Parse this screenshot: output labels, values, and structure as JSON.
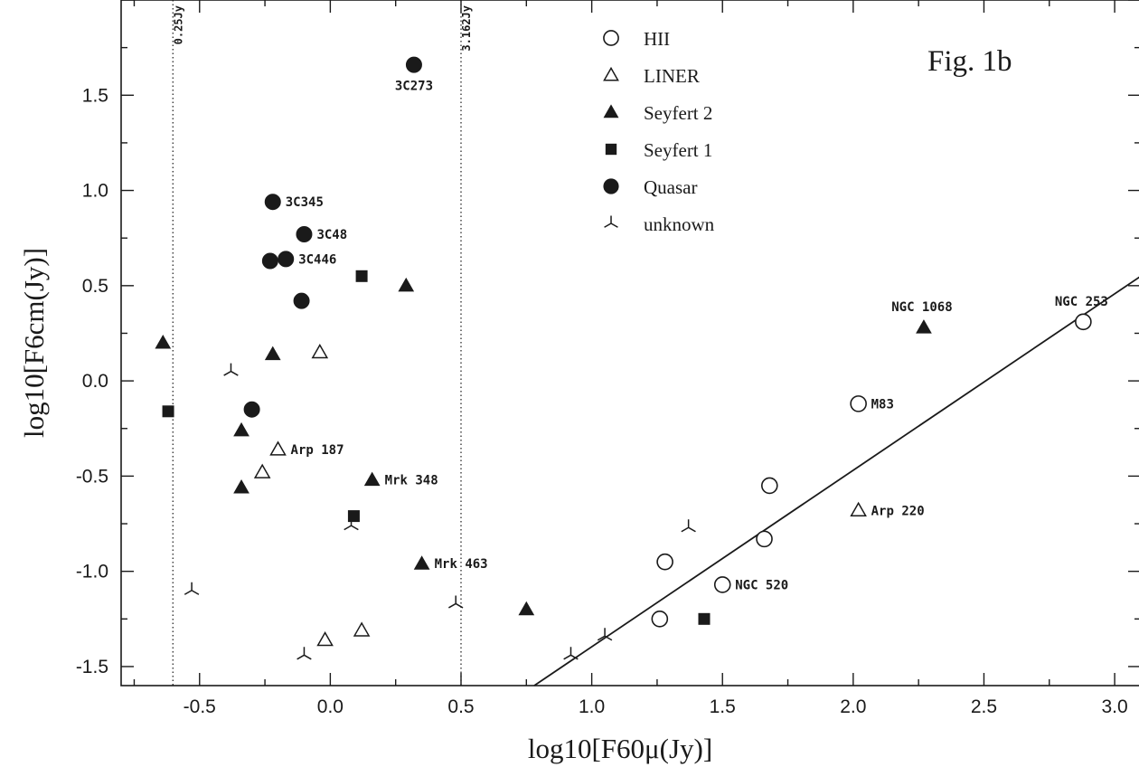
{
  "chart_data": {
    "type": "scatter",
    "title": "Fig. 1b",
    "xlabel": "log10[F60μ(Jy)]",
    "ylabel": "log10[F6cm(Jy)]",
    "xlim": [
      -0.8,
      3.1
    ],
    "ylim": [
      -1.6,
      2.0
    ],
    "x_ticks": [
      -0.5,
      0.0,
      0.5,
      1.0,
      1.5,
      2.0,
      2.5,
      3.0
    ],
    "x_tick_labels": [
      "-0.5",
      "0.0",
      "0.5",
      "1.0",
      "1.5",
      "2.0",
      "2.5",
      "3.0"
    ],
    "y_ticks": [
      -1.5,
      -1.0,
      -0.5,
      0.0,
      0.5,
      1.0,
      1.5
    ],
    "y_tick_labels": [
      "-1.5",
      "-1.0",
      "-0.5",
      "0.0",
      "0.5",
      "1.0",
      "1.5"
    ],
    "grid": false,
    "legend_position": "top-center",
    "vertical_lines": [
      {
        "x": -0.602,
        "label": "0.25Jy"
      },
      {
        "x": 0.5,
        "label": "3.162Jy"
      }
    ],
    "fit_line": {
      "x": [
        0.78,
        3.1
      ],
      "y": [
        -1.6,
        0.55
      ]
    },
    "series": [
      {
        "name": "HII",
        "marker": "circle-open",
        "points": [
          {
            "x": 1.26,
            "y": -1.25,
            "label": ""
          },
          {
            "x": 1.28,
            "y": -0.95,
            "label": ""
          },
          {
            "x": 1.5,
            "y": -1.07,
            "label": "NGC 520"
          },
          {
            "x": 1.66,
            "y": -0.83,
            "label": ""
          },
          {
            "x": 1.68,
            "y": -0.55,
            "label": ""
          },
          {
            "x": 2.02,
            "y": -0.12,
            "label": "M83"
          },
          {
            "x": 2.88,
            "y": 0.31,
            "label": "NGC 253"
          }
        ]
      },
      {
        "name": "LINER",
        "marker": "triangle-open",
        "points": [
          {
            "x": -0.04,
            "y": 0.15,
            "label": ""
          },
          {
            "x": -0.2,
            "y": -0.36,
            "label": "Arp 187"
          },
          {
            "x": -0.26,
            "y": -0.48,
            "label": ""
          },
          {
            "x": -0.02,
            "y": -1.36,
            "label": ""
          },
          {
            "x": 0.12,
            "y": -1.31,
            "label": ""
          },
          {
            "x": 2.02,
            "y": -0.68,
            "label": "Arp 220"
          }
        ]
      },
      {
        "name": "Seyfert 2",
        "marker": "triangle-filled",
        "points": [
          {
            "x": -0.64,
            "y": 0.2,
            "label": ""
          },
          {
            "x": -0.22,
            "y": 0.14,
            "label": ""
          },
          {
            "x": -0.34,
            "y": -0.26,
            "label": ""
          },
          {
            "x": -0.34,
            "y": -0.56,
            "label": ""
          },
          {
            "x": 0.16,
            "y": -0.52,
            "label": "Mrk 348"
          },
          {
            "x": 0.29,
            "y": 0.5,
            "label": ""
          },
          {
            "x": 0.35,
            "y": -0.96,
            "label": "Mrk 463"
          },
          {
            "x": 0.75,
            "y": -1.2,
            "label": ""
          },
          {
            "x": 2.27,
            "y": 0.28,
            "label": "NGC 1068"
          }
        ]
      },
      {
        "name": "Seyfert 1",
        "marker": "square-filled",
        "points": [
          {
            "x": -0.62,
            "y": -0.16,
            "label": ""
          },
          {
            "x": 0.12,
            "y": 0.55,
            "label": ""
          },
          {
            "x": 0.09,
            "y": -0.71,
            "label": ""
          },
          {
            "x": 1.43,
            "y": -1.25,
            "label": ""
          }
        ]
      },
      {
        "name": "Quasar",
        "marker": "circle-filled",
        "points": [
          {
            "x": 0.32,
            "y": 1.66,
            "label": "3C273"
          },
          {
            "x": -0.22,
            "y": 0.94,
            "label": "3C345"
          },
          {
            "x": -0.1,
            "y": 0.77,
            "label": "3C48"
          },
          {
            "x": -0.23,
            "y": 0.63,
            "label": ""
          },
          {
            "x": -0.17,
            "y": 0.64,
            "label": "3C446"
          },
          {
            "x": -0.11,
            "y": 0.42,
            "label": ""
          },
          {
            "x": -0.3,
            "y": -0.15,
            "label": ""
          }
        ]
      },
      {
        "name": "unknown",
        "marker": "tripod",
        "points": [
          {
            "x": -0.38,
            "y": 0.05,
            "label": ""
          },
          {
            "x": -0.53,
            "y": -1.1,
            "label": ""
          },
          {
            "x": -0.1,
            "y": -1.44,
            "label": ""
          },
          {
            "x": 0.08,
            "y": -0.76,
            "label": ""
          },
          {
            "x": 0.48,
            "y": -1.17,
            "label": ""
          },
          {
            "x": 0.92,
            "y": -1.44,
            "label": ""
          },
          {
            "x": 1.05,
            "y": -1.34,
            "label": ""
          },
          {
            "x": 1.37,
            "y": -0.77,
            "label": ""
          }
        ]
      }
    ]
  }
}
